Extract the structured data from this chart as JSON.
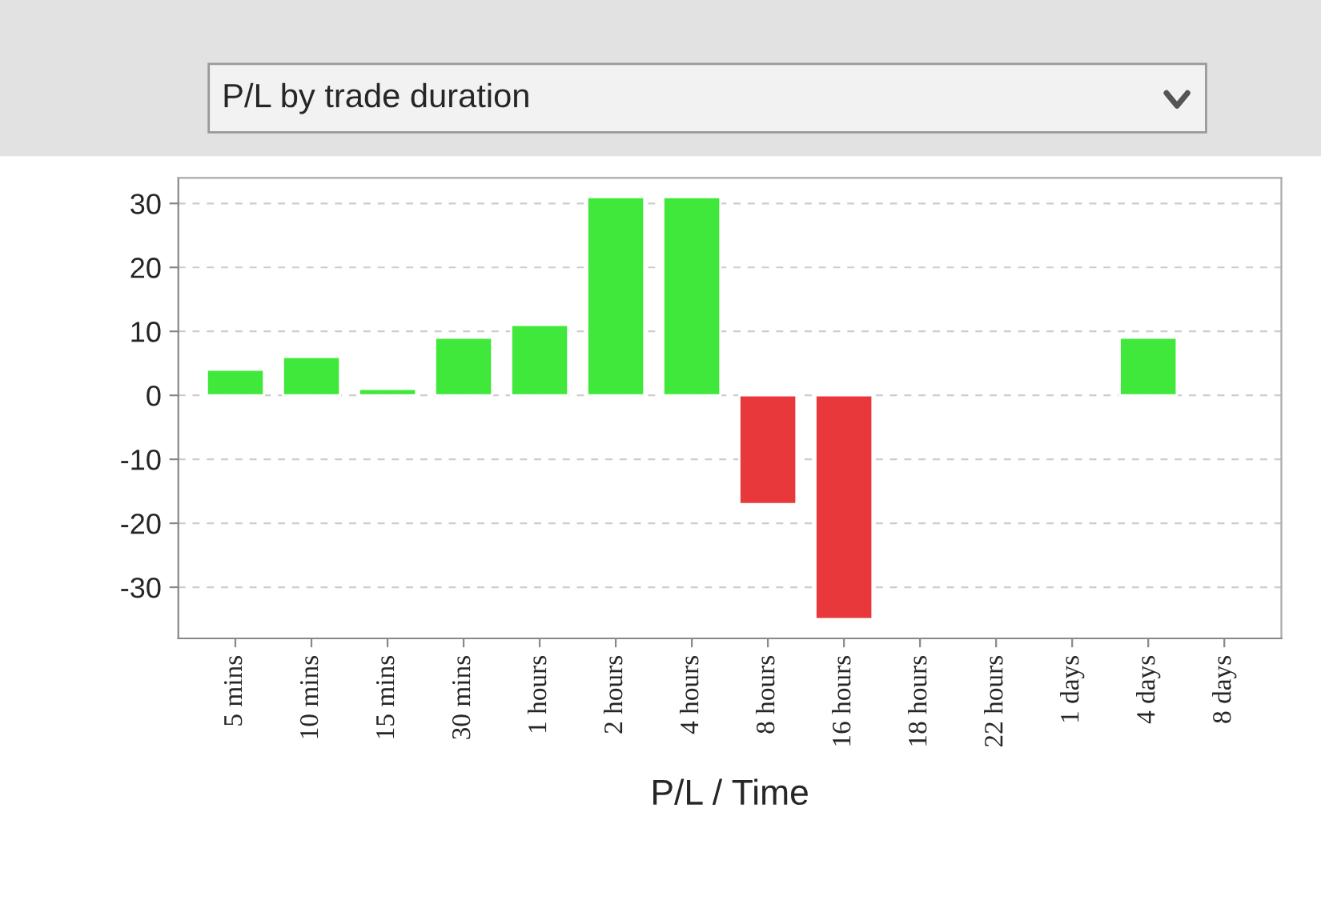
{
  "chart_data": {
    "type": "bar",
    "title": "P/L by trade duration",
    "xlabel": "P/L / Time",
    "categories": [
      "5 mins",
      "10 mins",
      "15 mins",
      "30 mins",
      "1 hours",
      "2 hours",
      "4 hours",
      "8 hours",
      "16 hours",
      "18 hours",
      "22 hours",
      "1 days",
      "4 days",
      "8 days"
    ],
    "values": [
      4,
      6,
      1,
      9,
      11,
      31,
      31,
      -17,
      -35,
      null,
      null,
      null,
      9,
      null
    ],
    "colors": [
      "#3fe83a",
      "#3fe83a",
      "#3fe83a",
      "#3fe83a",
      "#3fe83a",
      "#3fe83a",
      "#3fe83a",
      "#e8383b",
      "#e8383b",
      null,
      null,
      null,
      "#3fe83a",
      null
    ],
    "ylim": [
      -38,
      34
    ],
    "yticks": [
      -30,
      -20,
      -10,
      0,
      10,
      20,
      30
    ],
    "grid": "y"
  }
}
